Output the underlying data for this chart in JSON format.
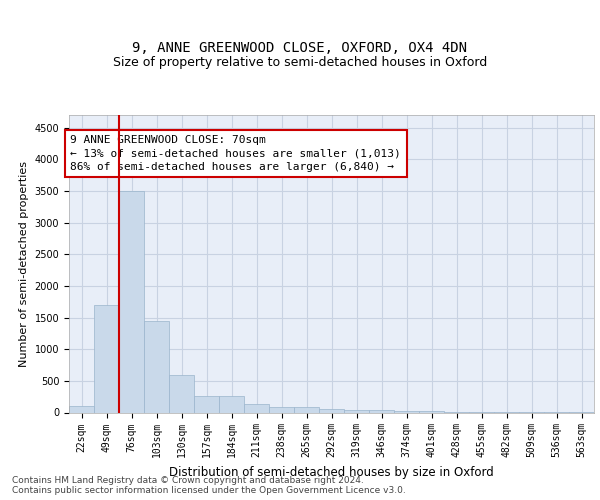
{
  "title1": "9, ANNE GREENWOOD CLOSE, OXFORD, OX4 4DN",
  "title2": "Size of property relative to semi-detached houses in Oxford",
  "xlabel": "Distribution of semi-detached houses by size in Oxford",
  "ylabel": "Number of semi-detached properties",
  "categories": [
    "22sqm",
    "49sqm",
    "76sqm",
    "103sqm",
    "130sqm",
    "157sqm",
    "184sqm",
    "211sqm",
    "238sqm",
    "265sqm",
    "292sqm",
    "319sqm",
    "346sqm",
    "374sqm",
    "401sqm",
    "428sqm",
    "455sqm",
    "482sqm",
    "509sqm",
    "536sqm",
    "563sqm"
  ],
  "values": [
    100,
    1700,
    3500,
    1450,
    600,
    260,
    255,
    140,
    85,
    80,
    55,
    45,
    40,
    30,
    20,
    15,
    10,
    8,
    6,
    5,
    4
  ],
  "bar_color": "#c9d9ea",
  "bar_edge_color": "#9ab4cc",
  "grid_color": "#c8d2e2",
  "background_color": "#e8eef8",
  "annotation_line1": "9 ANNE GREENWOOD CLOSE: 70sqm",
  "annotation_line2": "← 13% of semi-detached houses are smaller (1,013)",
  "annotation_line3": "86% of semi-detached houses are larger (6,840) →",
  "vline_x": 1.5,
  "vline_color": "#cc0000",
  "ylim": [
    0,
    4700
  ],
  "yticks": [
    0,
    500,
    1000,
    1500,
    2000,
    2500,
    3000,
    3500,
    4000,
    4500
  ],
  "footer_line1": "Contains HM Land Registry data © Crown copyright and database right 2024.",
  "footer_line2": "Contains public sector information licensed under the Open Government Licence v3.0.",
  "title1_fontsize": 10,
  "title2_fontsize": 9,
  "xlabel_fontsize": 8.5,
  "ylabel_fontsize": 8,
  "tick_fontsize": 7,
  "footer_fontsize": 6.5,
  "annotation_fontsize": 8
}
